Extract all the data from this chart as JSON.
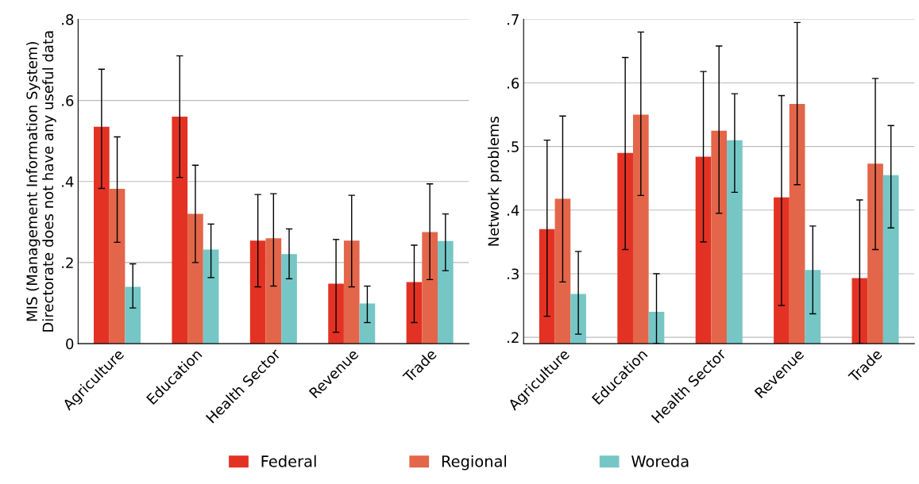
{
  "chart_data": [
    {
      "type": "bar",
      "categories": [
        "Agriculture",
        "Education",
        "Health Sector",
        "Revenue",
        "Trade"
      ],
      "ylabel": "MIS (Management Information System)\nDirectorate does not have any useful data",
      "ylim": [
        0,
        0.8
      ],
      "yticks": [
        {
          "value": 0,
          "label": "0"
        },
        {
          "value": 0.2,
          "label": ".2"
        },
        {
          "value": 0.4,
          "label": ".4"
        },
        {
          "value": 0.6,
          "label": ".6"
        },
        {
          "value": 0.8,
          "label": ".8"
        }
      ],
      "grid": "y",
      "legend": "bottom",
      "series": [
        {
          "name": "Federal",
          "color": "#e33224",
          "values": [
            0.535,
            0.56,
            0.254,
            0.148,
            0.152
          ],
          "errors": [
            [
              0.383,
              0.677
            ],
            [
              0.41,
              0.71
            ],
            [
              0.14,
              0.368
            ],
            [
              0.028,
              0.257
            ],
            [
              0.052,
              0.243
            ]
          ]
        },
        {
          "name": "Regional",
          "color": "#e3664a",
          "values": [
            0.382,
            0.32,
            0.26,
            0.254,
            0.275
          ],
          "errors": [
            [
              0.25,
              0.51
            ],
            [
              0.2,
              0.44
            ],
            [
              0.142,
              0.37
            ],
            [
              0.14,
              0.366
            ],
            [
              0.158,
              0.394
            ]
          ]
        },
        {
          "name": "Woreda",
          "color": "#76c6c6",
          "values": [
            0.14,
            0.232,
            0.221,
            0.099,
            0.253
          ],
          "errors": [
            [
              0.088,
              0.197
            ],
            [
              0.163,
              0.295
            ],
            [
              0.16,
              0.283
            ],
            [
              0.052,
              0.142
            ],
            [
              0.18,
              0.32
            ]
          ]
        }
      ]
    },
    {
      "type": "bar",
      "categories": [
        "Agriculture",
        "Education",
        "Health Sector",
        "Revenue",
        "Trade"
      ],
      "ylabel": "Network problems",
      "ylim": [
        0.19,
        0.7
      ],
      "yticks": [
        {
          "value": 0.2,
          "label": ".2"
        },
        {
          "value": 0.3,
          "label": ".3"
        },
        {
          "value": 0.4,
          "label": ".4"
        },
        {
          "value": 0.5,
          "label": ".5"
        },
        {
          "value": 0.6,
          "label": ".6"
        },
        {
          "value": 0.7,
          "label": ".7"
        }
      ],
      "grid": "y",
      "series": [
        {
          "color": "#e33224",
          "values": [
            0.37,
            0.49,
            0.484,
            0.42,
            0.293
          ],
          "errors": [
            [
              0.233,
              0.51
            ],
            [
              0.338,
              0.64
            ],
            [
              0.35,
              0.618
            ],
            [
              0.25,
              0.58
            ],
            [
              0.19,
              0.416
            ]
          ]
        },
        {
          "color": "#e3664a",
          "values": [
            0.418,
            0.55,
            0.525,
            0.567,
            0.473
          ],
          "errors": [
            [
              0.287,
              0.548
            ],
            [
              0.423,
              0.68
            ],
            [
              0.395,
              0.658
            ],
            [
              0.44,
              0.695
            ],
            [
              0.338,
              0.607
            ]
          ]
        },
        {
          "color": "#76c6c6",
          "values": [
            0.268,
            0.24,
            0.51,
            0.306,
            0.455
          ],
          "errors": [
            [
              0.205,
              0.335
            ],
            [
              0.19,
              0.3
            ],
            [
              0.428,
              0.583
            ],
            [
              0.237,
              0.375
            ],
            [
              0.372,
              0.533
            ]
          ]
        }
      ]
    }
  ]
}
